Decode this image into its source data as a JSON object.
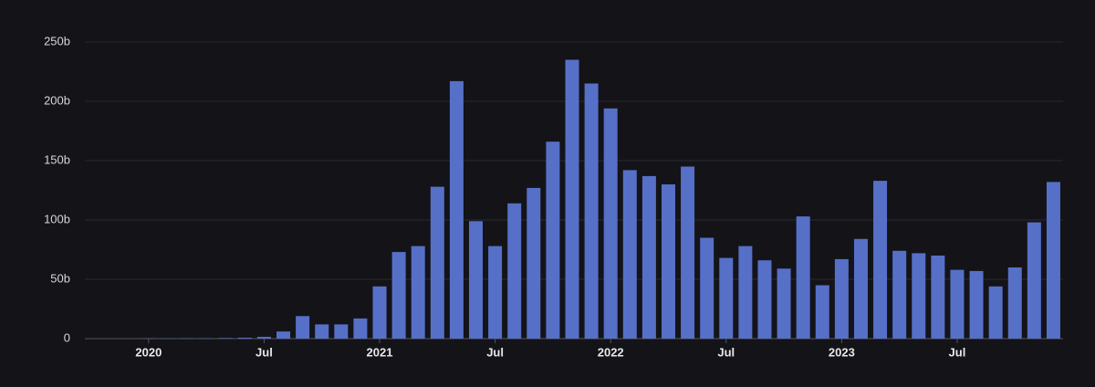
{
  "chart_data": {
    "type": "bar",
    "categories": [
      null,
      null,
      null,
      "2020",
      null,
      null,
      null,
      null,
      null,
      "Jul",
      null,
      null,
      null,
      null,
      null,
      "2021",
      null,
      null,
      null,
      null,
      null,
      "Jul",
      null,
      null,
      null,
      null,
      null,
      "2022",
      null,
      null,
      null,
      null,
      null,
      "Jul",
      null,
      null,
      null,
      null,
      null,
      "2023",
      null,
      null,
      null,
      null,
      null,
      "Jul",
      null,
      null,
      null,
      null,
      null
    ],
    "values": [
      0,
      0,
      0,
      0.2,
      0.3,
      0.3,
      0.3,
      0.5,
      0.8,
      1.5,
      6,
      19,
      12,
      12,
      17,
      44,
      73,
      78,
      128,
      217,
      99,
      78,
      114,
      127,
      166,
      235,
      215,
      194,
      142,
      137,
      130,
      145,
      85,
      68,
      78,
      66,
      59,
      103,
      45,
      67,
      84,
      133,
      74,
      72,
      70,
      58,
      57,
      44,
      60,
      98,
      132
    ],
    "color": "#5670c8",
    "ylim": [
      0,
      250
    ],
    "yticks": [
      0,
      {
        "value": 50,
        "label": "50b"
      },
      {
        "value": 100,
        "label": "100b"
      },
      {
        "value": 150,
        "label": "150b"
      },
      {
        "value": 200,
        "label": "200b"
      },
      {
        "value": 250,
        "label": "250b"
      }
    ],
    "grid": true
  }
}
